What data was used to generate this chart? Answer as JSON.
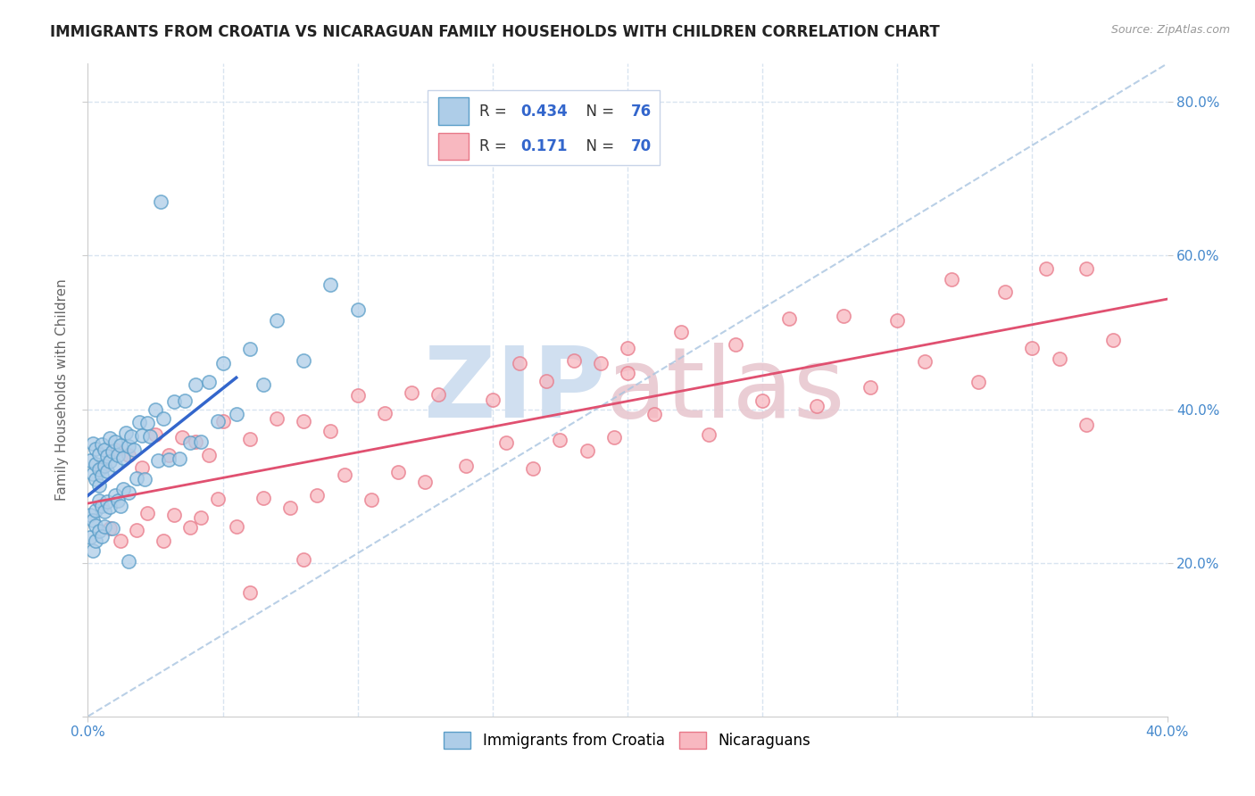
{
  "title": "IMMIGRANTS FROM CROATIA VS NICARAGUAN FAMILY HOUSEHOLDS WITH CHILDREN CORRELATION CHART",
  "source": "Source: ZipAtlas.com",
  "ylabel": "Family Households with Children",
  "xlim": [
    0.0,
    0.4
  ],
  "ylim": [
    0.0,
    0.85
  ],
  "series1_label": "Immigrants from Croatia",
  "series1_R": "0.434",
  "series1_N": "76",
  "series1_face_color": "#aecde8",
  "series1_edge_color": "#5a9ec8",
  "series2_label": "Nicaraguans",
  "series2_R": "0.171",
  "series2_N": "70",
  "series2_face_color": "#f8b8c0",
  "series2_edge_color": "#e87888",
  "trendline1_color": "#3366cc",
  "trendline2_color": "#e05070",
  "refline_color": "#a8c4e0",
  "grid_color": "#d8e4f0",
  "background_color": "#ffffff",
  "tick_color": "#4488cc",
  "ylabel_color": "#666666",
  "title_fontsize": 12,
  "tick_fontsize": 11,
  "source_fontsize": 9
}
